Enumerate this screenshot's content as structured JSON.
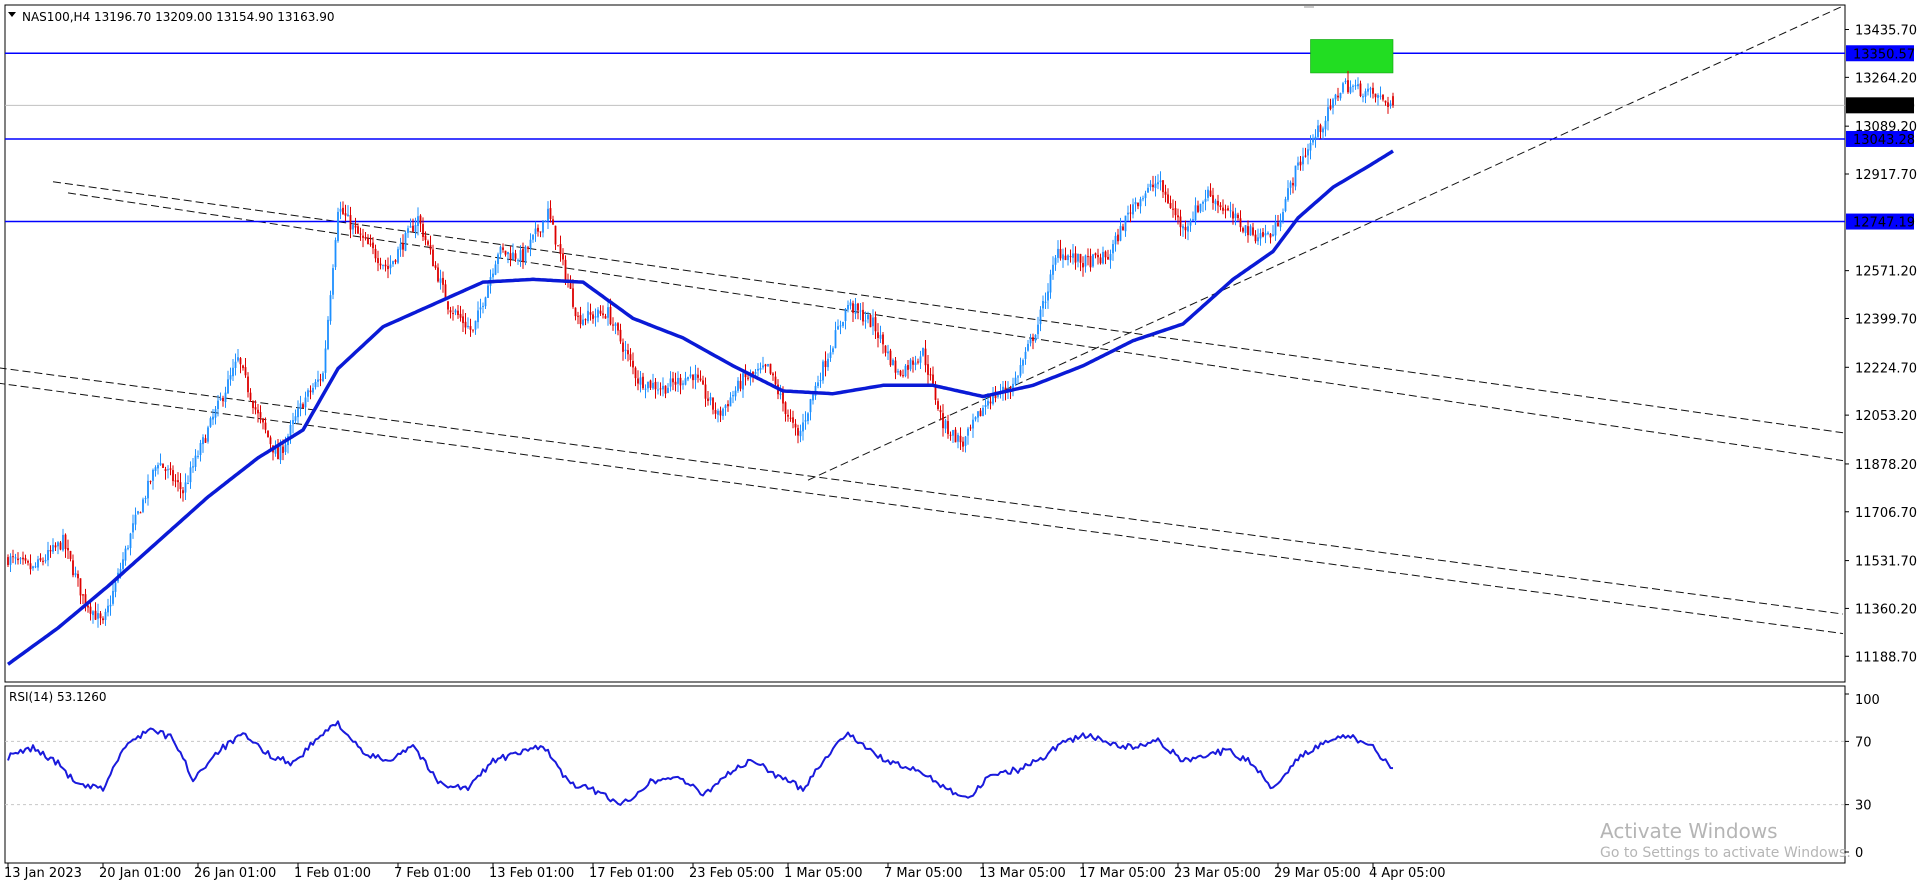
{
  "main_chart": {
    "symbol_info": "NAS100,H4  13196.70 13209.00 13154.90 13163.90",
    "price_ticks": [
      "13435.70",
      "13264.20",
      "13089.20",
      "12917.70",
      "12571.20",
      "12399.70",
      "12224.70",
      "12053.20",
      "11878.20",
      "11706.70",
      "11531.70",
      "11360.20",
      "11188.70"
    ],
    "hlines": [
      {
        "price": 13350.57,
        "label": "13350.57",
        "color": "#0000ff"
      },
      {
        "price": 13043.28,
        "label": "13043.28",
        "color": "#0000ff"
      },
      {
        "price": 12747.19,
        "label": "12747.19",
        "color": "#0000ff"
      }
    ],
    "current_price": {
      "price": 13163.9,
      "label": "13163.90",
      "color": "#000000"
    },
    "date_labels": [
      "13 Jan 2023",
      "20 Jan 01:00",
      "26 Jan 01:00",
      "1 Feb 01:00",
      "7 Feb 01:00",
      "13 Feb 01:00",
      "17 Feb 01:00",
      "23 Feb 05:00",
      "1 Mar 05:00",
      "7 Mar 05:00",
      "13 Mar 05:00",
      "17 Mar 05:00",
      "23 Mar 05:00",
      "29 Mar 05:00",
      "4 Apr 05:00"
    ],
    "colors": {
      "bull": "#1e90ff",
      "bear": "#dd0000",
      "ma": "#0a1ad6",
      "zone": "#22dd22",
      "grid": "#c8c8c8"
    }
  },
  "rsi_panel": {
    "label": "RSI(14) 53.1260",
    "ticks": [
      "100",
      "70",
      "30",
      "0"
    ],
    "line_color": "#1a1adc"
  },
  "watermark": {
    "title": "Activate Windows",
    "subtitle": "Go to Settings to activate Windows."
  },
  "chart_data": {
    "type": "candlestick",
    "symbol": "NAS100",
    "timeframe": "H4",
    "ylim": [
      11100,
      13520
    ],
    "price_axis_ticks": [
      13435.7,
      13264.2,
      13089.2,
      12917.7,
      12571.2,
      12399.7,
      12224.7,
      12053.2,
      11878.2,
      11706.7,
      11531.7,
      11360.2,
      11188.7
    ],
    "x_axis_labels": [
      "13 Jan 2023",
      "20 Jan 01:00",
      "26 Jan 01:00",
      "1 Feb 01:00",
      "7 Feb 01:00",
      "13 Feb 01:00",
      "17 Feb 01:00",
      "23 Feb 05:00",
      "1 Mar 05:00",
      "7 Mar 05:00",
      "13 Mar 05:00",
      "17 Mar 05:00",
      "23 Mar 05:00",
      "29 Mar 05:00",
      "4 Apr 05:00"
    ],
    "last_ohlc": {
      "open": 13196.7,
      "high": 13209.0,
      "low": 13154.9,
      "close": 13163.9
    },
    "horizontal_levels": [
      13350.57,
      13043.28,
      12747.19
    ],
    "close_series_keypoints": [
      [
        0,
        11540
      ],
      [
        10,
        11500
      ],
      [
        22,
        11600
      ],
      [
        30,
        11400
      ],
      [
        38,
        11300
      ],
      [
        50,
        11650
      ],
      [
        60,
        11890
      ],
      [
        70,
        11780
      ],
      [
        80,
        12000
      ],
      [
        92,
        12250
      ],
      [
        100,
        12050
      ],
      [
        108,
        11900
      ],
      [
        118,
        12100
      ],
      [
        126,
        12200
      ],
      [
        132,
        12800
      ],
      [
        140,
        12700
      ],
      [
        152,
        12580
      ],
      [
        164,
        12760
      ],
      [
        176,
        12450
      ],
      [
        186,
        12350
      ],
      [
        196,
        12640
      ],
      [
        206,
        12620
      ],
      [
        216,
        12780
      ],
      [
        228,
        12400
      ],
      [
        240,
        12420
      ],
      [
        252,
        12180
      ],
      [
        262,
        12150
      ],
      [
        274,
        12200
      ],
      [
        284,
        12050
      ],
      [
        294,
        12180
      ],
      [
        304,
        12220
      ],
      [
        316,
        11970
      ],
      [
        324,
        12180
      ],
      [
        336,
        12450
      ],
      [
        346,
        12380
      ],
      [
        356,
        12200
      ],
      [
        366,
        12280
      ],
      [
        374,
        12020
      ],
      [
        382,
        11950
      ],
      [
        392,
        12110
      ],
      [
        402,
        12160
      ],
      [
        412,
        12380
      ],
      [
        420,
        12640
      ],
      [
        430,
        12600
      ],
      [
        440,
        12620
      ],
      [
        450,
        12810
      ],
      [
        460,
        12890
      ],
      [
        470,
        12720
      ],
      [
        480,
        12850
      ],
      [
        490,
        12760
      ],
      [
        498,
        12700
      ],
      [
        506,
        12700
      ],
      [
        516,
        12950
      ],
      [
        526,
        13100
      ],
      [
        534,
        13240
      ],
      [
        544,
        13210
      ],
      [
        554,
        13163.9
      ]
    ],
    "moving_average_keypoints": [
      [
        0,
        11160
      ],
      [
        20,
        11290
      ],
      [
        40,
        11440
      ],
      [
        60,
        11600
      ],
      [
        80,
        11760
      ],
      [
        100,
        11900
      ],
      [
        118,
        12000
      ],
      [
        132,
        12220
      ],
      [
        150,
        12370
      ],
      [
        170,
        12450
      ],
      [
        190,
        12530
      ],
      [
        210,
        12540
      ],
      [
        230,
        12530
      ],
      [
        250,
        12400
      ],
      [
        270,
        12330
      ],
      [
        290,
        12230
      ],
      [
        310,
        12140
      ],
      [
        330,
        12130
      ],
      [
        350,
        12160
      ],
      [
        370,
        12160
      ],
      [
        390,
        12120
      ],
      [
        410,
        12160
      ],
      [
        430,
        12230
      ],
      [
        450,
        12320
      ],
      [
        470,
        12380
      ],
      [
        490,
        12540
      ],
      [
        506,
        12640
      ],
      [
        516,
        12760
      ],
      [
        530,
        12870
      ],
      [
        545,
        12950
      ],
      [
        554,
        13000
      ]
    ],
    "supply_zone": {
      "low": 13280,
      "high": 13400
    },
    "rsi": {
      "period": 14,
      "last": 53.126,
      "levels": [
        70,
        30
      ],
      "range": [
        0,
        100
      ],
      "keypoints": [
        [
          0,
          60
        ],
        [
          10,
          66
        ],
        [
          20,
          56
        ],
        [
          28,
          42
        ],
        [
          38,
          40
        ],
        [
          46,
          65
        ],
        [
          56,
          78
        ],
        [
          66,
          72
        ],
        [
          74,
          46
        ],
        [
          84,
          64
        ],
        [
          94,
          74
        ],
        [
          104,
          62
        ],
        [
          114,
          56
        ],
        [
          124,
          72
        ],
        [
          132,
          82
        ],
        [
          142,
          62
        ],
        [
          152,
          58
        ],
        [
          162,
          68
        ],
        [
          172,
          44
        ],
        [
          184,
          40
        ],
        [
          194,
          58
        ],
        [
          204,
          62
        ],
        [
          214,
          68
        ],
        [
          224,
          44
        ],
        [
          236,
          38
        ],
        [
          246,
          30
        ],
        [
          256,
          44
        ],
        [
          268,
          48
        ],
        [
          278,
          36
        ],
        [
          288,
          50
        ],
        [
          298,
          58
        ],
        [
          308,
          48
        ],
        [
          318,
          40
        ],
        [
          326,
          58
        ],
        [
          336,
          76
        ],
        [
          346,
          62
        ],
        [
          356,
          55
        ],
        [
          366,
          50
        ],
        [
          376,
          40
        ],
        [
          384,
          34
        ],
        [
          394,
          50
        ],
        [
          404,
          52
        ],
        [
          414,
          60
        ],
        [
          422,
          70
        ],
        [
          432,
          74
        ],
        [
          442,
          68
        ],
        [
          450,
          66
        ],
        [
          460,
          70
        ],
        [
          470,
          58
        ],
        [
          480,
          62
        ],
        [
          488,
          64
        ],
        [
          498,
          56
        ],
        [
          506,
          40
        ],
        [
          516,
          60
        ],
        [
          526,
          68
        ],
        [
          536,
          74
        ],
        [
          546,
          66
        ],
        [
          554,
          53.126
        ]
      ]
    }
  }
}
